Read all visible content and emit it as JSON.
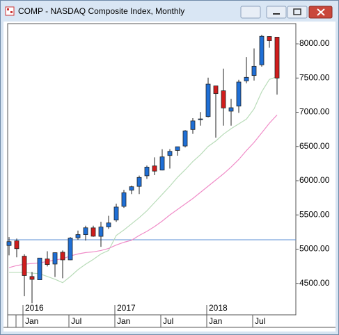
{
  "window": {
    "title": "COMP - NASDAQ Composite Index, Monthly"
  },
  "chart_data": {
    "type": "candlestick",
    "x_labels": [
      null,
      null,
      "Jan",
      null,
      null,
      null,
      null,
      null,
      "Jul",
      null,
      null,
      null,
      null,
      null,
      "Jan",
      null,
      null,
      null,
      null,
      null,
      "Jul",
      null,
      null,
      null,
      null,
      null,
      "Jan",
      null,
      null,
      null,
      null,
      null,
      "Jul",
      null,
      null,
      null
    ],
    "year_labels": [
      null,
      null,
      "2016",
      null,
      null,
      null,
      null,
      null,
      null,
      null,
      null,
      null,
      null,
      null,
      "2017",
      null,
      null,
      null,
      null,
      null,
      null,
      null,
      null,
      null,
      null,
      null,
      "2018",
      null,
      null,
      null,
      null,
      null,
      null,
      null,
      null,
      null
    ],
    "open": [
      5053,
      5121,
      4897,
      4600,
      4552,
      4857,
      4782,
      4955,
      4843,
      5166,
      5212,
      5311,
      5187,
      5325,
      5425,
      5625,
      5861,
      5917,
      6072,
      6216,
      6155,
      6368,
      6442,
      6507,
      6748,
      6890,
      6937,
      7385,
      7314,
      7016,
      7090,
      7458,
      7537,
      7693,
      8107,
      8098
    ],
    "high": [
      5176,
      5155,
      4925,
      4667,
      4870,
      4969,
      4952,
      4981,
      5176,
      5271,
      5342,
      5343,
      5400,
      5487,
      5665,
      5867,
      5928,
      6075,
      6221,
      6342,
      6460,
      6461,
      6496,
      6740,
      6914,
      7003,
      7505,
      7385,
      7637,
      7196,
      7475,
      7806,
      7933,
      8133,
      8109,
      8098
    ],
    "low": [
      4910,
      4880,
      4313,
      4210,
      4553,
      4747,
      4594,
      4574,
      4840,
      5137,
      5125,
      5180,
      5034,
      5297,
      5398,
      5602,
      5805,
      5805,
      6027,
      6081,
      6151,
      6178,
      6365,
      6486,
      6684,
      6805,
      6924,
      6630,
      6805,
      6805,
      6991,
      7423,
      7463,
      7667,
      7943,
      7258
    ],
    "close": [
      5109,
      5007,
      4614,
      4558,
      4870,
      4775,
      4948,
      4843,
      5162,
      5213,
      5312,
      5189,
      5323,
      5383,
      5615,
      5825,
      5912,
      6048,
      6199,
      6140,
      6348,
      6429,
      6496,
      6728,
      6874,
      6903,
      7411,
      7273,
      7063,
      7066,
      7442,
      7510,
      7672,
      8110,
      8046,
      7500
    ],
    "up_color": "#1f6fd6",
    "down_color": "#d01c1c",
    "overlays": [
      {
        "color": "#b9dcb9",
        "values": [
          4660,
          4660,
          4660,
          4650,
          4640,
          4600,
          4560,
          4510,
          4600,
          4700,
          4780,
          4850,
          4930,
          4980,
          5200,
          5280,
          5370,
          5460,
          5560,
          5680,
          5800,
          5920,
          6050,
          6160,
          6280,
          6380,
          6500,
          6580,
          6680,
          6760,
          6830,
          6900,
          7050,
          7300,
          7480,
          7520
        ]
      },
      {
        "color": "#f08cc8",
        "values": [
          4730,
          4760,
          4780,
          4790,
          4800,
          4820,
          4840,
          4860,
          4900,
          4930,
          4950,
          4960,
          4980,
          5010,
          5060,
          5100,
          5130,
          5200,
          5260,
          5330,
          5410,
          5500,
          5580,
          5660,
          5740,
          5830,
          5920,
          6010,
          6100,
          6200,
          6310,
          6440,
          6560,
          6700,
          6840,
          6960
        ]
      }
    ],
    "reference_line": {
      "value": 5137,
      "color": "#5b8fd6"
    },
    "ylim": [
      4040,
      8295
    ],
    "yticks": [
      {
        "value": 4500,
        "label": "4500.00"
      },
      {
        "value": 5000,
        "label": "5000.00"
      },
      {
        "value": 5500,
        "label": "5500.00"
      },
      {
        "value": 6000,
        "label": "6000.00"
      },
      {
        "value": 6500,
        "label": "6500.00"
      },
      {
        "value": 7000,
        "label": "7000.00"
      },
      {
        "value": 7500,
        "label": "7500.00"
      },
      {
        "value": 8000,
        "label": "8000.00"
      }
    ]
  }
}
